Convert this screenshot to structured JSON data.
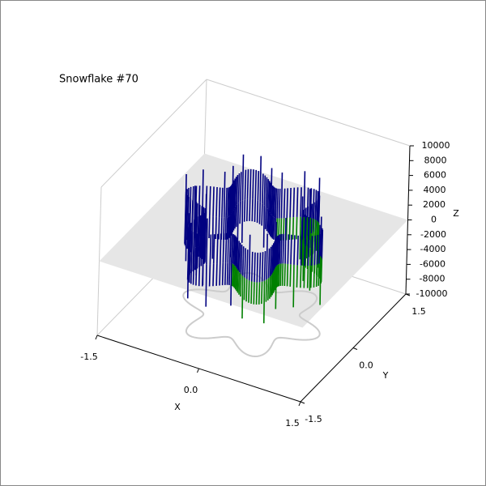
{
  "chart_data": {
    "type": "surface3d",
    "title": "Snowflake #70",
    "xlabel": "X",
    "ylabel": "Y",
    "zlabel": "Z",
    "xlim": [
      -1.5,
      1.5
    ],
    "xticks": [
      -1.5,
      {
        "value": 0,
        "label": "0.0"
      },
      1.5
    ],
    "ylim": [
      -1.5,
      1.5
    ],
    "yticks": [
      -1.5,
      {
        "value": 0,
        "label": "0.0"
      },
      1.5
    ],
    "zlim": [
      -10000,
      10000
    ],
    "zticks": [
      -10000,
      -8000,
      -6000,
      -4000,
      -2000,
      0,
      2000,
      4000,
      6000,
      8000,
      10000
    ]
  }
}
